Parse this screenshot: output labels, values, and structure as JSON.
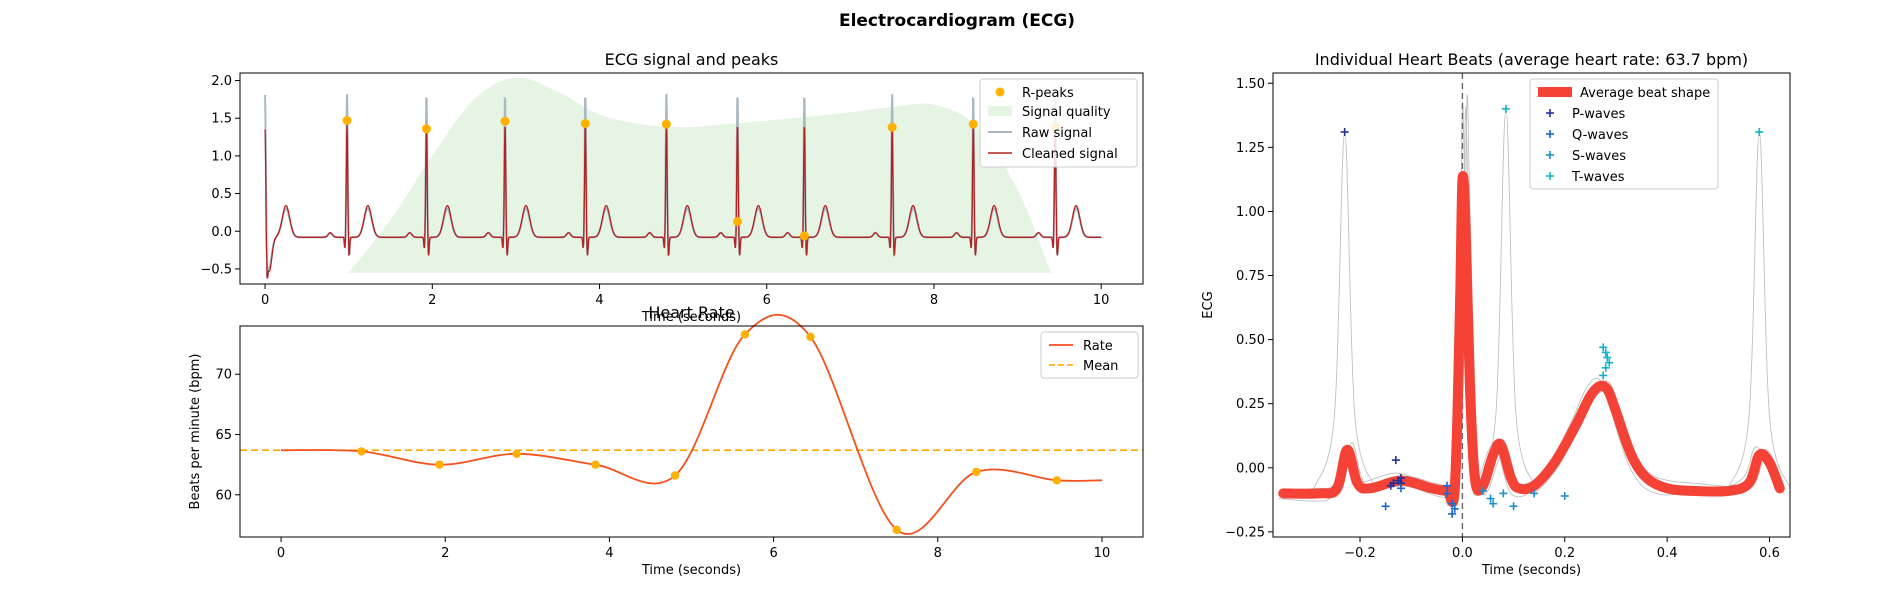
{
  "figure": {
    "suptitle": "Electrocardiogram (ECG)"
  },
  "colors": {
    "raw": "#a9b8c2",
    "clean": "#b22222",
    "rpeak": "#ffb000",
    "quality": "#e6f4e4",
    "rate": "#f4511e",
    "mean": "#ffa500",
    "avg": "#f44336",
    "beat": "#c0c0c0",
    "pwave": "#1f2f99",
    "qwave": "#1a66cc",
    "swave": "#1e90d0",
    "twave": "#13b2c8"
  },
  "chart_data": [
    {
      "type": "line",
      "title": "ECG signal and peaks",
      "xlabel": "Time (seconds)",
      "ylabel": "",
      "xlim": [
        -0.3,
        10.5
      ],
      "ylim": [
        -0.7,
        2.1
      ],
      "xticks": [
        0,
        2,
        4,
        6,
        8,
        10
      ],
      "yticks": [
        -0.5,
        0.0,
        0.5,
        1.0,
        1.5,
        2.0
      ],
      "xtick_labels": [
        "0",
        "2",
        "4",
        "6",
        "8",
        "10"
      ],
      "ytick_labels": [
        "−0.5",
        "0.0",
        "0.5",
        "1.0",
        "1.5",
        "2.0"
      ],
      "legend": {
        "placement": "top-right",
        "entries": [
          "R-peaks",
          "Signal quality",
          "Raw signal",
          "Cleaned signal"
        ]
      },
      "rpeaks": {
        "x": [
          0.98,
          1.93,
          2.87,
          3.83,
          4.8,
          5.65,
          6.45,
          7.5,
          8.47,
          9.45
        ],
        "y": [
          1.47,
          1.36,
          1.46,
          1.43,
          1.42,
          0.13,
          -0.06,
          1.38,
          1.42,
          1.38
        ]
      },
      "signal_quality": {
        "x": [
          1.0,
          1.5,
          2.0,
          2.5,
          3.0,
          3.5,
          4.0,
          4.5,
          5.0,
          5.5,
          6.0,
          6.5,
          7.0,
          7.5,
          8.0,
          8.5,
          9.0,
          9.4
        ],
        "y": [
          -0.55,
          0.15,
          1.0,
          1.75,
          2.04,
          1.85,
          1.55,
          1.42,
          1.38,
          1.42,
          1.47,
          1.52,
          1.58,
          1.65,
          1.68,
          1.4,
          0.55,
          -0.55
        ]
      },
      "beats_at": [
        0.0,
        0.98,
        1.93,
        2.87,
        3.83,
        4.8,
        5.65,
        6.45,
        7.5,
        8.47,
        9.45
      ]
    },
    {
      "type": "line",
      "title": "Heart Rate",
      "xlabel": "Time (seconds)",
      "ylabel": "Beats per minute (bpm)",
      "xlim": [
        -0.5,
        10.5
      ],
      "ylim": [
        56.5,
        74.0
      ],
      "xticks": [
        0,
        2,
        4,
        6,
        8,
        10
      ],
      "yticks": [
        60,
        65,
        70
      ],
      "xtick_labels": [
        "0",
        "2",
        "4",
        "6",
        "8",
        "10"
      ],
      "ytick_labels": [
        "60",
        "65",
        "70"
      ],
      "legend": {
        "placement": "top-right",
        "entries": [
          "Rate",
          "Mean"
        ]
      },
      "rate": {
        "x": [
          0.0,
          0.98,
          1.93,
          2.87,
          3.83,
          4.8,
          5.65,
          6.45,
          7.5,
          8.47,
          9.45,
          10.0
        ],
        "y": [
          63.7,
          63.6,
          62.5,
          63.4,
          62.5,
          61.6,
          73.3,
          73.1,
          57.1,
          61.9,
          61.2,
          61.2
        ]
      },
      "rate_points": {
        "x": [
          0.98,
          1.93,
          2.87,
          3.83,
          4.8,
          5.65,
          6.45,
          7.5,
          8.47,
          9.45
        ],
        "y": [
          63.6,
          62.5,
          63.4,
          62.5,
          61.6,
          73.3,
          73.1,
          57.1,
          61.9,
          61.2
        ]
      },
      "mean": 63.7
    },
    {
      "type": "line",
      "title": "Individual Heart Beats (average heart rate: 63.7 bpm)",
      "xlabel": "Time (seconds)",
      "ylabel": "ECG",
      "xlim": [
        -0.37,
        0.64
      ],
      "ylim": [
        -0.27,
        1.54
      ],
      "xticks": [
        -0.2,
        0.0,
        0.2,
        0.4,
        0.6
      ],
      "yticks": [
        -0.25,
        0.0,
        0.25,
        0.5,
        0.75,
        1.0,
        1.25,
        1.5
      ],
      "xtick_labels": [
        "−0.2",
        "0.0",
        "0.2",
        "0.4",
        "0.6"
      ],
      "ytick_labels": [
        "−0.25",
        "0.00",
        "0.25",
        "0.50",
        "0.75",
        "1.00",
        "1.25",
        "1.50"
      ],
      "legend": {
        "placement": "top-right",
        "entries": [
          "Average beat shape",
          "P-waves",
          "Q-waves",
          "S-waves",
          "T-waves"
        ]
      },
      "average_beat": {
        "x": [
          -0.35,
          -0.28,
          -0.245,
          -0.225,
          -0.205,
          -0.18,
          -0.12,
          -0.06,
          -0.03,
          -0.015,
          -0.005,
          0.0,
          0.006,
          0.015,
          0.025,
          0.04,
          0.06,
          0.075,
          0.095,
          0.11,
          0.14,
          0.18,
          0.22,
          0.25,
          0.27,
          0.285,
          0.3,
          0.33,
          0.36,
          0.4,
          0.45,
          0.52,
          0.56,
          0.58,
          0.6,
          0.62
        ],
        "y": [
          -0.1,
          -0.1,
          -0.08,
          0.07,
          -0.06,
          -0.08,
          -0.05,
          -0.08,
          -0.09,
          -0.08,
          0.6,
          1.12,
          0.95,
          0.3,
          -0.05,
          -0.07,
          0.05,
          0.09,
          -0.04,
          -0.08,
          -0.07,
          0.02,
          0.16,
          0.28,
          0.32,
          0.3,
          0.22,
          0.05,
          -0.04,
          -0.08,
          -0.09,
          -0.09,
          -0.06,
          0.05,
          0.02,
          -0.08
        ]
      },
      "p_waves": {
        "x": [
          -0.23,
          -0.13,
          -0.12,
          -0.125,
          -0.135,
          -0.14,
          -0.12
        ],
        "y": [
          1.31,
          0.03,
          -0.04,
          -0.05,
          -0.06,
          -0.07,
          -0.06
        ]
      },
      "q_waves": {
        "x": [
          -0.15,
          -0.12,
          -0.03,
          -0.02,
          -0.015,
          -0.02,
          -0.03
        ],
        "y": [
          -0.15,
          -0.08,
          -0.1,
          -0.14,
          -0.16,
          -0.18,
          -0.07
        ]
      },
      "s_waves": {
        "x": [
          0.04,
          0.055,
          0.06,
          0.08,
          0.1,
          0.14,
          0.2
        ],
        "y": [
          -0.09,
          -0.12,
          -0.14,
          -0.1,
          -0.15,
          -0.1,
          -0.11
        ]
      },
      "t_waves": {
        "x": [
          0.085,
          0.275,
          0.28,
          0.283,
          0.287,
          0.28,
          0.275,
          0.58
        ],
        "y": [
          1.4,
          0.47,
          0.45,
          0.43,
          0.41,
          0.39,
          0.36,
          1.31
        ]
      }
    }
  ]
}
